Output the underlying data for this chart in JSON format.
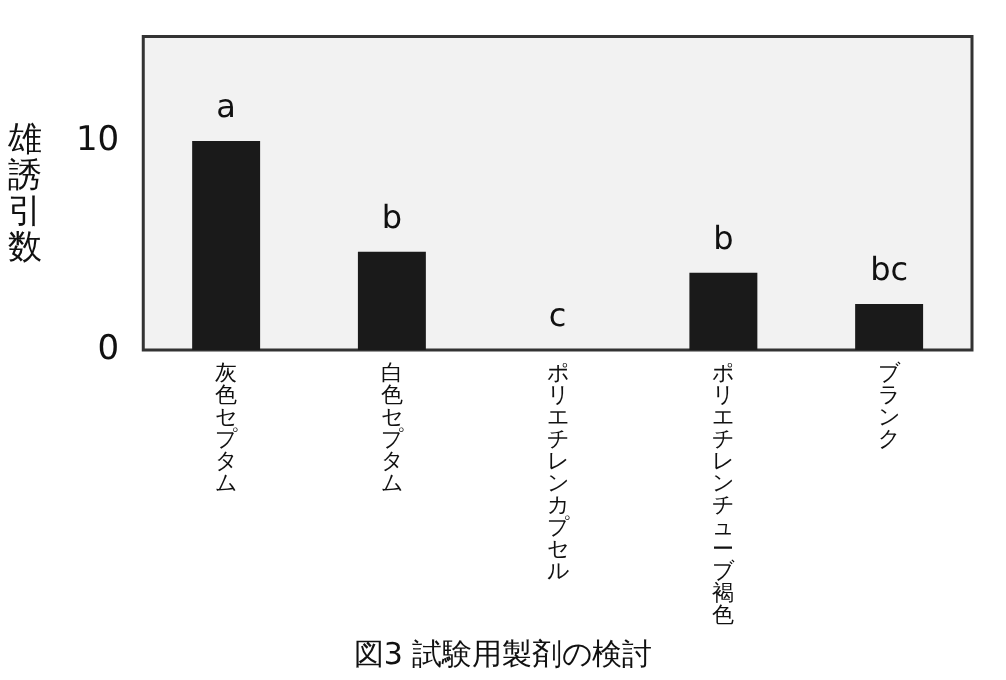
{
  "chart_data": {
    "type": "bar",
    "title": "図3 試験用製剤の検討",
    "ylabel": "雄誘引数",
    "categories": [
      "灰色セプタム",
      "白色セプタム",
      "ポリエチレンカプセル",
      "ポリエチレンチューブ褐色",
      "ブランク"
    ],
    "values": [
      10.0,
      4.7,
      0,
      3.7,
      2.2
    ],
    "color": "#1a1a1a",
    "value_labels": [
      "a",
      "b",
      "c",
      "b",
      "bc"
    ],
    "ylim": [
      0,
      15
    ],
    "yticks": [
      0,
      10
    ],
    "grid": false,
    "legend": false
  }
}
